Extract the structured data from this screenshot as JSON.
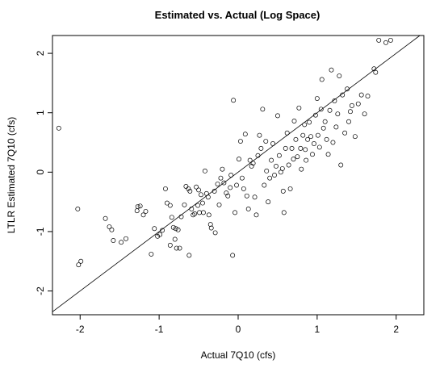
{
  "chart_data": {
    "type": "scatter",
    "title": "Estimated vs. Actual (Log Space)",
    "xlabel": "Actual 7Q10 (cfs)",
    "ylabel": "LTLR Estimated 7Q10 (cfs)",
    "xlim": [
      -2.35,
      2.35
    ],
    "ylim": [
      -2.4,
      2.3
    ],
    "x_ticks": [
      -2,
      -1,
      0,
      1,
      2
    ],
    "y_ticks": [
      -2,
      -1,
      0,
      1,
      2
    ],
    "x_tick_labels": [
      "-2",
      "-1",
      "0",
      "1",
      "2"
    ],
    "y_tick_labels": [
      "-2",
      "-1",
      "0",
      "1",
      "2"
    ],
    "grid": false,
    "legend": "none",
    "reference_line": {
      "slope": 1,
      "intercept": 0
    },
    "points": [
      [
        -2.27,
        0.74
      ],
      [
        -2.03,
        -0.62
      ],
      [
        -2.02,
        -1.56
      ],
      [
        -1.99,
        -1.5
      ],
      [
        -1.68,
        -0.78
      ],
      [
        -1.63,
        -0.92
      ],
      [
        -1.6,
        -0.97
      ],
      [
        -1.58,
        -1.15
      ],
      [
        -1.48,
        -1.18
      ],
      [
        -1.42,
        -1.12
      ],
      [
        -1.28,
        -0.65
      ],
      [
        -1.27,
        -0.58
      ],
      [
        -1.24,
        -0.57
      ],
      [
        -1.2,
        -0.72
      ],
      [
        -1.17,
        -0.66
      ],
      [
        -1.1,
        -1.38
      ],
      [
        -1.06,
        -0.95
      ],
      [
        -1.02,
        -1.08
      ],
      [
        -0.99,
        -1.05
      ],
      [
        -0.96,
        -0.98
      ],
      [
        -0.92,
        -0.28
      ],
      [
        -0.9,
        -0.52
      ],
      [
        -0.86,
        -0.56
      ],
      [
        -0.86,
        -1.23
      ],
      [
        -0.84,
        -0.76
      ],
      [
        -0.82,
        -0.93
      ],
      [
        -0.8,
        -1.13
      ],
      [
        -0.79,
        -0.95
      ],
      [
        -0.78,
        -1.28
      ],
      [
        -0.76,
        -0.97
      ],
      [
        -0.74,
        -1.28
      ],
      [
        -0.72,
        -0.75
      ],
      [
        -0.68,
        -0.55
      ],
      [
        -0.66,
        -0.24
      ],
      [
        -0.63,
        -0.28
      ],
      [
        -0.62,
        -1.4
      ],
      [
        -0.61,
        -0.32
      ],
      [
        -0.59,
        -0.62
      ],
      [
        -0.57,
        -0.72
      ],
      [
        -0.55,
        -0.7
      ],
      [
        -0.53,
        -0.25
      ],
      [
        -0.51,
        -0.56
      ],
      [
        -0.5,
        -0.3
      ],
      [
        -0.49,
        -0.68
      ],
      [
        -0.47,
        -0.38
      ],
      [
        -0.45,
        -0.52
      ],
      [
        -0.44,
        -0.68
      ],
      [
        -0.42,
        0.02
      ],
      [
        -0.4,
        -0.36
      ],
      [
        -0.38,
        -0.42
      ],
      [
        -0.37,
        -0.72
      ],
      [
        -0.35,
        -0.88
      ],
      [
        -0.34,
        -0.94
      ],
      [
        -0.3,
        -0.32
      ],
      [
        -0.29,
        -1.02
      ],
      [
        -0.26,
        -0.2
      ],
      [
        -0.24,
        -0.55
      ],
      [
        -0.22,
        -0.1
      ],
      [
        -0.2,
        0.05
      ],
      [
        -0.18,
        -0.18
      ],
      [
        -0.15,
        -0.35
      ],
      [
        -0.13,
        -0.4
      ],
      [
        -0.1,
        -0.26
      ],
      [
        -0.09,
        -0.05
      ],
      [
        -0.07,
        -1.4
      ],
      [
        -0.06,
        1.21
      ],
      [
        -0.04,
        -0.68
      ],
      [
        -0.02,
        -0.22
      ],
      [
        0.01,
        0.22
      ],
      [
        0.03,
        0.52
      ],
      [
        0.05,
        -0.1
      ],
      [
        0.07,
        -0.28
      ],
      [
        0.09,
        0.64
      ],
      [
        0.11,
        -0.4
      ],
      [
        0.13,
        -0.62
      ],
      [
        0.15,
        0.2
      ],
      [
        0.17,
        0.1
      ],
      [
        0.19,
        0.15
      ],
      [
        0.21,
        -0.42
      ],
      [
        0.23,
        -0.72
      ],
      [
        0.25,
        0.28
      ],
      [
        0.27,
        0.62
      ],
      [
        0.29,
        0.4
      ],
      [
        0.31,
        1.06
      ],
      [
        0.33,
        -0.22
      ],
      [
        0.35,
        0.52
      ],
      [
        0.36,
        0.02
      ],
      [
        0.38,
        -0.5
      ],
      [
        0.4,
        -0.1
      ],
      [
        0.42,
        0.2
      ],
      [
        0.44,
        0.48
      ],
      [
        0.46,
        -0.05
      ],
      [
        0.48,
        0.1
      ],
      [
        0.5,
        0.95
      ],
      [
        0.52,
        0.28
      ],
      [
        0.54,
        0.0
      ],
      [
        0.56,
        0.06
      ],
      [
        0.57,
        -0.32
      ],
      [
        0.58,
        -0.68
      ],
      [
        0.6,
        0.4
      ],
      [
        0.62,
        0.66
      ],
      [
        0.64,
        0.12
      ],
      [
        0.66,
        -0.28
      ],
      [
        0.68,
        0.4
      ],
      [
        0.7,
        0.22
      ],
      [
        0.71,
        0.86
      ],
      [
        0.73,
        0.55
      ],
      [
        0.75,
        0.26
      ],
      [
        0.77,
        1.08
      ],
      [
        0.79,
        0.4
      ],
      [
        0.8,
        0.05
      ],
      [
        0.82,
        0.62
      ],
      [
        0.84,
        0.8
      ],
      [
        0.85,
        0.38
      ],
      [
        0.86,
        0.2
      ],
      [
        0.88,
        0.55
      ],
      [
        0.9,
        0.84
      ],
      [
        0.92,
        0.6
      ],
      [
        0.94,
        0.3
      ],
      [
        0.96,
        0.48
      ],
      [
        0.98,
        0.96
      ],
      [
        1.0,
        1.24
      ],
      [
        1.01,
        0.62
      ],
      [
        1.03,
        0.42
      ],
      [
        1.05,
        1.06
      ],
      [
        1.06,
        1.56
      ],
      [
        1.08,
        0.74
      ],
      [
        1.1,
        0.85
      ],
      [
        1.12,
        0.55
      ],
      [
        1.14,
        0.3
      ],
      [
        1.16,
        1.04
      ],
      [
        1.18,
        1.72
      ],
      [
        1.2,
        0.5
      ],
      [
        1.22,
        1.2
      ],
      [
        1.24,
        0.76
      ],
      [
        1.26,
        0.98
      ],
      [
        1.28,
        1.62
      ],
      [
        1.3,
        0.12
      ],
      [
        1.32,
        1.3
      ],
      [
        1.35,
        0.66
      ],
      [
        1.38,
        1.4
      ],
      [
        1.4,
        0.85
      ],
      [
        1.42,
        1.02
      ],
      [
        1.44,
        1.12
      ],
      [
        1.48,
        0.6
      ],
      [
        1.52,
        1.15
      ],
      [
        1.56,
        1.3
      ],
      [
        1.6,
        0.98
      ],
      [
        1.64,
        1.28
      ],
      [
        1.72,
        1.74
      ],
      [
        1.74,
        1.68
      ],
      [
        1.78,
        2.22
      ],
      [
        1.87,
        2.18
      ],
      [
        1.93,
        2.22
      ]
    ]
  }
}
